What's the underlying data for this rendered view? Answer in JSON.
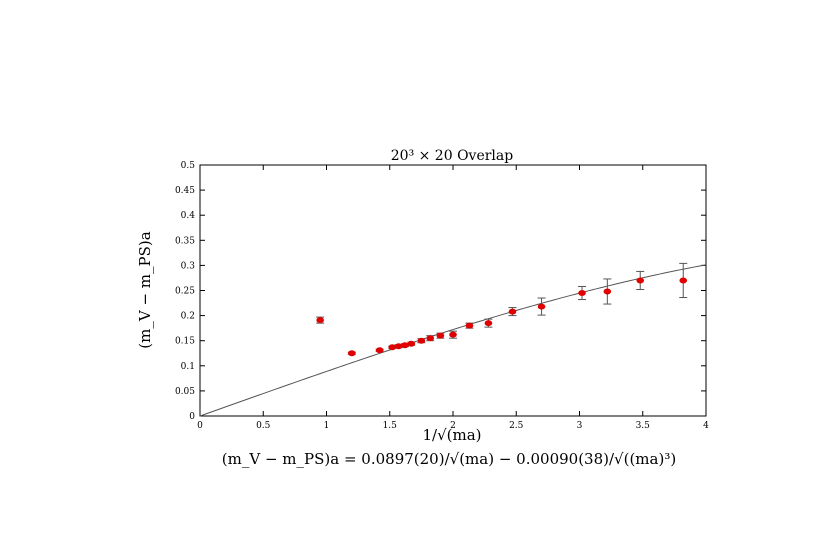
{
  "chart_data": {
    "type": "scatter",
    "title": "20³ × 20 Overlap",
    "xlabel": "1/√(ma)",
    "ylabel": "(m_V − m_PS)a",
    "xlim": [
      0,
      4
    ],
    "ylim": [
      0,
      0.5
    ],
    "grid": false,
    "x_ticks": [
      "0",
      "0.5",
      "1",
      "1.5",
      "2",
      "2.5",
      "3",
      "3.5",
      "4"
    ],
    "y_ticks": [
      "0",
      "0.05",
      "0.1",
      "0.15",
      "0.2",
      "0.25",
      "0.3",
      "0.35",
      "0.4",
      "0.45",
      "0.5"
    ],
    "marker_color": "#e00000",
    "errorbar_color": "#555555",
    "fit_color": "#555555",
    "points": [
      {
        "x": 0.95,
        "y": 0.191,
        "err": 0.006
      },
      {
        "x": 1.2,
        "y": 0.125,
        "err": 0.002
      },
      {
        "x": 1.42,
        "y": 0.131,
        "err": 0.002
      },
      {
        "x": 1.52,
        "y": 0.137,
        "err": 0.002
      },
      {
        "x": 1.57,
        "y": 0.139,
        "err": 0.003
      },
      {
        "x": 1.62,
        "y": 0.141,
        "err": 0.003
      },
      {
        "x": 1.67,
        "y": 0.144,
        "err": 0.003
      },
      {
        "x": 1.75,
        "y": 0.15,
        "err": 0.004
      },
      {
        "x": 1.82,
        "y": 0.155,
        "err": 0.005
      },
      {
        "x": 1.9,
        "y": 0.16,
        "err": 0.005
      },
      {
        "x": 2.0,
        "y": 0.162,
        "err": 0.007
      },
      {
        "x": 2.13,
        "y": 0.18,
        "err": 0.005
      },
      {
        "x": 2.28,
        "y": 0.185,
        "err": 0.008
      },
      {
        "x": 2.47,
        "y": 0.208,
        "err": 0.008
      },
      {
        "x": 2.7,
        "y": 0.218,
        "err": 0.017
      },
      {
        "x": 3.02,
        "y": 0.245,
        "err": 0.013
      },
      {
        "x": 3.22,
        "y": 0.248,
        "err": 0.025
      },
      {
        "x": 3.48,
        "y": 0.27,
        "err": 0.018
      },
      {
        "x": 3.82,
        "y": 0.27,
        "err": 0.034
      }
    ],
    "fit": {
      "formula": "(m_V − m_PS)a = 0.0897(20)/√(ma) − 0.00090(38)/√((ma)³)",
      "a": 0.0897,
      "b": -0.0009
    }
  }
}
